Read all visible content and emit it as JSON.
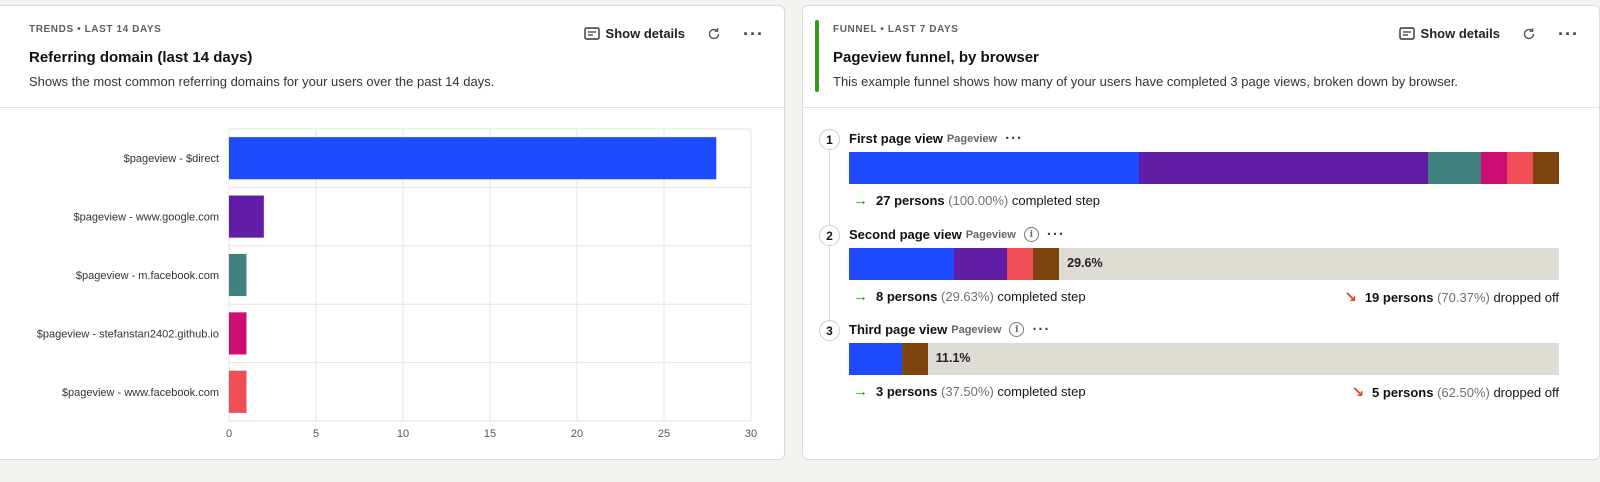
{
  "trends_card": {
    "eyebrow": "TRENDS • LAST 14 DAYS",
    "title": "Referring domain (last 14 days)",
    "description": "Shows the most common referring domains for your users over the past 14 days.",
    "show_details": "Show details",
    "more_label": "···"
  },
  "funnel_card": {
    "eyebrow": "FUNNEL • LAST 7 DAYS",
    "title": "Pageview funnel, by browser",
    "description": "This example funnel shows how many of your users have completed 3 page views, broken down by browser.",
    "show_details": "Show details",
    "more_label": "···",
    "accent_color": "#2f9b16",
    "steps": [
      {
        "num": "1",
        "name": "First page view",
        "event": "Pageview",
        "has_info": false,
        "more": "···",
        "conversion_fraction": 1.0,
        "percent_label": "",
        "segments": [
          {
            "value": 0.4085,
            "color": "#1d4aff"
          },
          {
            "value": 0.407,
            "color": "#621da6"
          },
          {
            "value": 0.074,
            "color": "#42827e"
          },
          {
            "value": 0.037,
            "color": "#ce0e74"
          },
          {
            "value": 0.037,
            "color": "#f14f58"
          },
          {
            "value": 0.0365,
            "color": "#7c440e"
          }
        ],
        "completed_count": "27 persons",
        "completed_pct": "(100.00%)",
        "completed_text": "completed step",
        "dropped_count": "",
        "dropped_pct": "",
        "dropped_text": ""
      },
      {
        "num": "2",
        "name": "Second page view",
        "event": "Pageview",
        "has_info": true,
        "more": "···",
        "conversion_fraction": 0.296,
        "percent_label": "29.6%",
        "segments": [
          {
            "value": 0.148,
            "color": "#1d4aff"
          },
          {
            "value": 0.074,
            "color": "#621da6"
          },
          {
            "value": 0.037,
            "color": "#f14f58"
          },
          {
            "value": 0.037,
            "color": "#7c440e"
          }
        ],
        "completed_count": "8 persons",
        "completed_pct": "(29.63%)",
        "completed_text": "completed step",
        "dropped_count": "19 persons",
        "dropped_pct": "(70.37%)",
        "dropped_text": "dropped off"
      },
      {
        "num": "3",
        "name": "Third page view",
        "event": "Pageview",
        "has_info": true,
        "more": "···",
        "conversion_fraction": 0.111,
        "percent_label": "11.1%",
        "segments": [
          {
            "value": 0.074,
            "color": "#1d4aff"
          },
          {
            "value": 0.037,
            "color": "#7c440e"
          }
        ],
        "completed_count": "3 persons",
        "completed_pct": "(37.50%)",
        "completed_text": "completed step",
        "dropped_count": "5 persons",
        "dropped_pct": "(62.50%)",
        "dropped_text": "dropped off"
      }
    ]
  },
  "chart_data": {
    "type": "bar",
    "orientation": "horizontal",
    "categories": [
      "$pageview - $direct",
      "$pageview - www.google.com",
      "$pageview - m.facebook.com",
      "$pageview - stefanstan2402.github.io",
      "$pageview - www.facebook.com"
    ],
    "values": [
      28,
      2,
      1,
      1,
      1
    ],
    "colors": [
      "#1d4aff",
      "#621da6",
      "#42827e",
      "#ce0e74",
      "#f14f58"
    ],
    "x_ticks": [
      0,
      5,
      10,
      15,
      20,
      25,
      30
    ],
    "xlim": [
      0,
      30
    ],
    "grid": true,
    "title": "",
    "xlabel": "",
    "ylabel": ""
  }
}
